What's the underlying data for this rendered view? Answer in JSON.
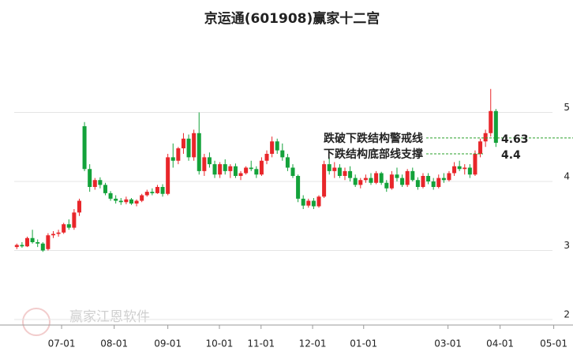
{
  "chart_data": {
    "type": "candlestick",
    "title": "京运通(601908)赢家十二宫",
    "watermark": "赢家江恩软件",
    "up_color": "#e8262a",
    "down_color": "#13a23a",
    "grid": true,
    "open": [
      3.05,
      3.08,
      3.06,
      3.18,
      3.12,
      3.1,
      3.02,
      3.22,
      3.24,
      3.26,
      3.38,
      3.33,
      3.55,
      4.8,
      4.18,
      3.92,
      4.02,
      3.95,
      3.83,
      3.75,
      3.72,
      3.7,
      3.74,
      3.68,
      3.72,
      3.8,
      3.85,
      3.83,
      3.92,
      3.82,
      4.35,
      4.3,
      4.48,
      4.62,
      4.35,
      4.7,
      4.15,
      4.35,
      4.25,
      4.1,
      4.25,
      4.15,
      4.22,
      4.08,
      4.12,
      4.2,
      4.18,
      4.1,
      4.3,
      4.4,
      4.58,
      4.45,
      4.35,
      4.2,
      4.08,
      3.75,
      3.65,
      3.72,
      3.64,
      3.78,
      4.25,
      4.15,
      4.2,
      4.08,
      4.15,
      4.05,
      3.95,
      4.02,
      4.05,
      3.98,
      4.12,
      3.98,
      3.9,
      4.1,
      4.05,
      3.95,
      4.15,
      4.02,
      3.92,
      4.08,
      4.0,
      3.92,
      4.05,
      4.02,
      4.12,
      4.22,
      4.18,
      4.2,
      4.1,
      4.4,
      4.58,
      4.7,
      5.02
    ],
    "high": [
      3.1,
      3.12,
      3.2,
      3.3,
      3.16,
      3.12,
      3.25,
      3.28,
      3.3,
      3.4,
      3.45,
      3.6,
      3.75,
      4.86,
      4.25,
      4.05,
      4.06,
      3.98,
      3.86,
      3.8,
      3.76,
      3.78,
      3.76,
      3.74,
      3.82,
      3.88,
      3.9,
      3.95,
      3.96,
      4.4,
      4.55,
      4.5,
      4.7,
      4.68,
      4.75,
      5.0,
      4.4,
      4.42,
      4.3,
      4.28,
      4.32,
      4.25,
      4.26,
      4.15,
      4.22,
      4.3,
      4.22,
      4.35,
      4.45,
      4.65,
      4.62,
      4.55,
      4.4,
      4.25,
      4.1,
      3.8,
      3.75,
      3.76,
      3.8,
      4.3,
      4.35,
      4.28,
      4.25,
      4.2,
      4.22,
      4.1,
      4.05,
      4.1,
      4.12,
      4.15,
      4.14,
      4.02,
      4.15,
      4.2,
      4.1,
      4.18,
      4.2,
      4.06,
      4.12,
      4.12,
      4.05,
      4.1,
      4.12,
      4.15,
      4.28,
      4.3,
      4.25,
      4.25,
      4.45,
      4.62,
      4.75,
      5.34,
      5.05
    ],
    "low": [
      3.02,
      3.04,
      3.05,
      3.1,
      3.05,
      2.98,
      3.0,
      3.18,
      3.2,
      3.24,
      3.3,
      3.3,
      3.5,
      4.15,
      3.85,
      3.88,
      3.9,
      3.8,
      3.72,
      3.68,
      3.66,
      3.67,
      3.66,
      3.64,
      3.7,
      3.78,
      3.8,
      3.82,
      3.78,
      3.8,
      4.2,
      4.25,
      4.4,
      4.3,
      4.3,
      4.1,
      4.08,
      4.2,
      4.05,
      4.05,
      4.1,
      4.05,
      4.05,
      4.02,
      4.1,
      4.15,
      4.05,
      4.08,
      4.25,
      4.35,
      4.4,
      4.3,
      4.15,
      4.05,
      3.7,
      3.6,
      3.62,
      3.6,
      3.62,
      3.76,
      4.1,
      4.05,
      4.05,
      4.02,
      4.0,
      3.92,
      3.9,
      3.98,
      3.95,
      3.96,
      3.95,
      3.85,
      3.88,
      4.0,
      3.92,
      3.92,
      4.0,
      3.88,
      3.9,
      3.96,
      3.88,
      3.9,
      3.98,
      4.0,
      4.08,
      4.15,
      4.1,
      4.05,
      4.08,
      4.35,
      4.5,
      4.65,
      4.5
    ],
    "close": [
      3.08,
      3.06,
      3.18,
      3.12,
      3.1,
      3.0,
      3.22,
      3.24,
      3.26,
      3.38,
      3.33,
      3.55,
      3.72,
      4.18,
      3.92,
      4.02,
      3.95,
      3.83,
      3.75,
      3.72,
      3.7,
      3.74,
      3.68,
      3.72,
      3.8,
      3.85,
      3.83,
      3.92,
      3.82,
      4.35,
      4.3,
      4.48,
      4.62,
      4.35,
      4.7,
      4.15,
      4.35,
      4.25,
      4.1,
      4.25,
      4.15,
      4.22,
      4.08,
      4.12,
      4.2,
      4.18,
      4.1,
      4.3,
      4.4,
      4.58,
      4.45,
      4.35,
      4.2,
      4.08,
      3.75,
      3.65,
      3.72,
      3.64,
      3.78,
      4.25,
      4.15,
      4.2,
      4.08,
      4.15,
      4.05,
      3.95,
      4.02,
      4.05,
      3.98,
      4.12,
      3.98,
      3.9,
      4.1,
      4.05,
      3.95,
      4.15,
      4.02,
      3.92,
      4.08,
      4.0,
      3.92,
      4.05,
      4.02,
      4.12,
      4.22,
      4.18,
      4.2,
      4.1,
      4.4,
      4.58,
      4.7,
      5.02,
      4.56
    ],
    "xlim": [
      -0.5,
      106.8
    ],
    "xticks": [
      {
        "value": 8.6,
        "label": "07-01"
      },
      {
        "value": 18.7,
        "label": "08-01"
      },
      {
        "value": 29,
        "label": "09-01"
      },
      {
        "value": 38.9,
        "label": "10-01"
      },
      {
        "value": 46.9,
        "label": "11-01"
      },
      {
        "value": 56.8,
        "label": "12-01"
      },
      {
        "value": 66.6,
        "label": "01-01"
      },
      {
        "value": 82.8,
        "label": "03-01"
      },
      {
        "value": 92.8,
        "label": "04-01"
      },
      {
        "value": 103.1,
        "label": "05-01"
      }
    ],
    "ylim": [
      1.92,
      6.0
    ],
    "yticks": [
      2,
      3,
      4,
      5
    ],
    "annotations": [
      {
        "text": "跌破下跌结构警戒线",
        "value": 4.63,
        "color": "#2aa02a"
      },
      {
        "text": "下跌结构底部线支撑",
        "value": 4.4,
        "color": "#2aa02a"
      }
    ]
  }
}
